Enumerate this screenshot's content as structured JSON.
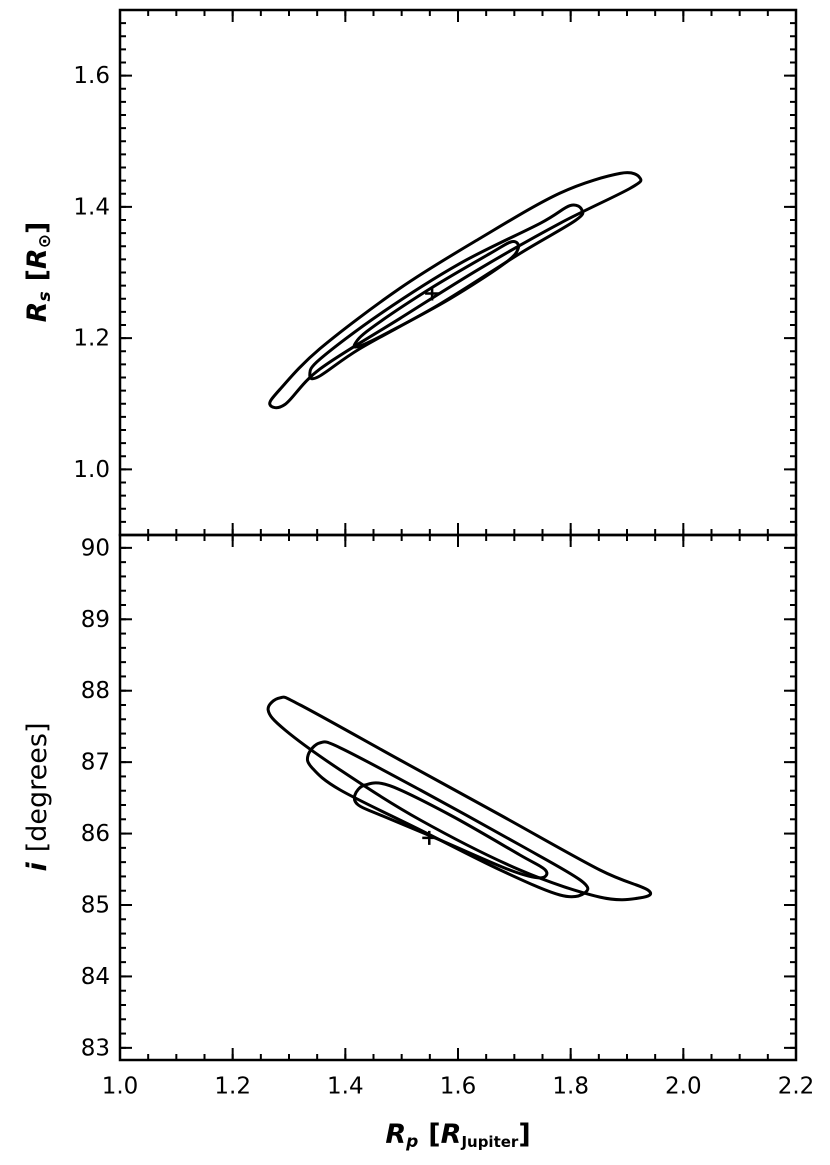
{
  "chart_data": [
    {
      "type": "contour",
      "ylabel": {
        "symbol": "R",
        "symbol_sub": "s",
        "open": "[",
        "unit": "R",
        "unit_sub": "⊙",
        "close": "]"
      },
      "xlim": [
        1.0,
        2.2
      ],
      "xticks": [
        1.0,
        1.2,
        1.4,
        1.6,
        1.8,
        2.0,
        2.2
      ],
      "ylim": [
        0.9,
        1.7
      ],
      "yticks": [
        {
          "value": 1.0,
          "label": "1.0"
        },
        1.2,
        1.4,
        1.6
      ],
      "color": "#000000",
      "contours": [
        {
          "x": [
            1.266,
            1.284,
            1.355,
            1.497,
            1.639,
            1.781,
            1.888,
            1.923,
            1.905,
            1.781,
            1.639,
            1.497,
            1.355,
            1.293
          ],
          "y": [
            1.099,
            1.122,
            1.184,
            1.276,
            1.352,
            1.421,
            1.451,
            1.444,
            1.428,
            1.375,
            1.306,
            1.23,
            1.153,
            1.099
          ]
        },
        {
          "x": [
            1.337,
            1.355,
            1.462,
            1.604,
            1.746,
            1.799,
            1.82,
            1.808,
            1.71,
            1.568,
            1.426,
            1.352
          ],
          "y": [
            1.145,
            1.168,
            1.237,
            1.314,
            1.375,
            1.402,
            1.395,
            1.379,
            1.329,
            1.252,
            1.184,
            1.141
          ]
        },
        {
          "x": [
            1.417,
            1.444,
            1.55,
            1.657,
            1.696,
            1.707,
            1.683,
            1.586,
            1.479,
            1.426
          ],
          "y": [
            1.191,
            1.214,
            1.275,
            1.329,
            1.347,
            1.337,
            1.314,
            1.26,
            1.21,
            1.188
          ]
        }
      ],
      "best_fit": {
        "x": 1.554,
        "y": 1.268
      }
    },
    {
      "type": "contour",
      "xlabel": {
        "symbol": "R",
        "symbol_sub": "p",
        "open": "[",
        "unit": "R",
        "unit_sub": "Jupiter",
        "close": "]"
      },
      "ylabel": {
        "symbol": "i",
        "unit": "[degrees]"
      },
      "xlim": [
        1.0,
        2.2
      ],
      "xticks": [
        {
          "value": 1.0,
          "label": "1.0"
        },
        1.2,
        1.4,
        1.6,
        1.8,
        {
          "value": 2.0,
          "label": "2.0"
        },
        2.2
      ],
      "ylim": [
        82.83,
        90.18
      ],
      "yticks": [
        83,
        84,
        85,
        86,
        87,
        88,
        89,
        90
      ],
      "color": "#000000",
      "contours": [
        {
          "x": [
            1.263,
            1.284,
            1.32,
            1.497,
            1.675,
            1.852,
            1.937,
            1.923,
            1.852,
            1.71,
            1.533,
            1.391,
            1.293
          ],
          "y": [
            87.73,
            87.9,
            87.8,
            87.03,
            86.26,
            85.49,
            85.21,
            85.1,
            85.11,
            85.49,
            86.19,
            86.89,
            87.45
          ]
        },
        {
          "x": [
            1.334,
            1.355,
            1.391,
            1.533,
            1.71,
            1.817,
            1.825,
            1.781,
            1.675,
            1.533,
            1.391,
            1.341
          ],
          "y": [
            87.1,
            87.27,
            87.2,
            86.61,
            85.84,
            85.35,
            85.17,
            85.14,
            85.49,
            86.05,
            86.61,
            86.92
          ]
        },
        {
          "x": [
            1.417,
            1.435,
            1.479,
            1.586,
            1.71,
            1.755,
            1.746,
            1.692,
            1.568,
            1.462,
            1.423
          ],
          "y": [
            86.54,
            86.68,
            86.67,
            86.26,
            85.7,
            85.49,
            85.38,
            85.49,
            85.91,
            86.26,
            86.4
          ]
        }
      ],
      "best_fit": {
        "x": 1.549,
        "y": 85.94
      }
    }
  ]
}
